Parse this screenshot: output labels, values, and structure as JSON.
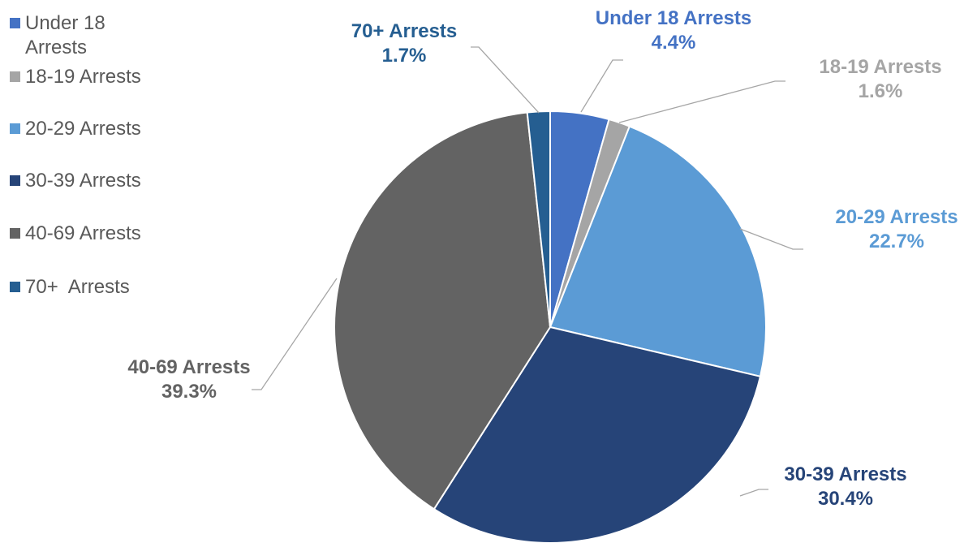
{
  "chart_data": {
    "type": "pie",
    "title": "",
    "categories": [
      "Under 18 Arrests",
      "18-19 Arrests",
      "20-29 Arrests",
      "30-39 Arrests",
      "40-69 Arrests",
      "70+  Arrests"
    ],
    "values": [
      4.4,
      1.6,
      22.7,
      30.4,
      39.3,
      1.7
    ],
    "value_labels": [
      "4.4%",
      "1.6%",
      "22.7%",
      "30.4%",
      "39.3%",
      "1.7%"
    ],
    "colors": [
      "#4472C4",
      "#A5A5A5",
      "#5B9BD5",
      "#264478",
      "#636363",
      "#255E91"
    ],
    "legend_position": "top-left"
  },
  "legend": {
    "items": [
      {
        "label": "Under 18\nArrests",
        "color": "#4472C4"
      },
      {
        "label": "18-19 Arrests",
        "color": "#A5A5A5"
      },
      {
        "label": "20-29 Arrests",
        "color": "#5B9BD5"
      },
      {
        "label": "30-39 Arrests",
        "color": "#264478"
      },
      {
        "label": "40-69 Arrests",
        "color": "#636363"
      },
      {
        "label": "70+  Arrests",
        "color": "#255E91"
      }
    ]
  }
}
